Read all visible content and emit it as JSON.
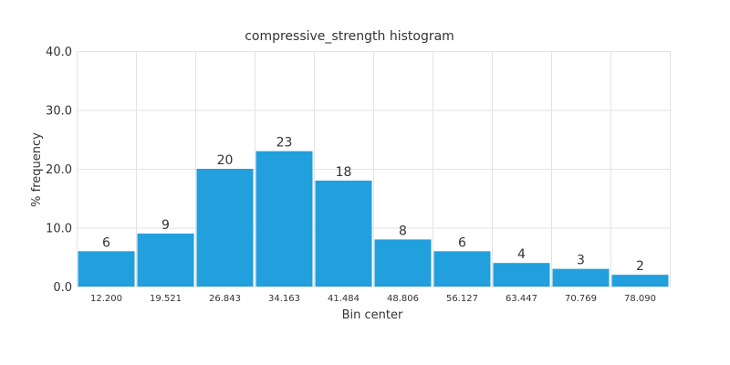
{
  "chart_data": {
    "type": "bar",
    "title": "compressive_strength histogram",
    "xlabel": "Bin center",
    "ylabel": "% frequency",
    "categories": [
      "12.200",
      "19.521",
      "26.843",
      "34.163",
      "41.484",
      "48.806",
      "56.127",
      "63.447",
      "70.769",
      "78.090"
    ],
    "values": [
      6,
      9,
      20,
      23,
      18,
      8,
      6,
      4,
      3,
      2
    ],
    "data_labels": [
      "6",
      "9",
      "20",
      "23",
      "18",
      "8",
      "6",
      "4",
      "3",
      "2"
    ],
    "ylim": [
      0,
      40
    ],
    "yticks": [
      "0.0",
      "10.0",
      "20.0",
      "30.0",
      "40.0"
    ],
    "grid": true,
    "bar_color": "#229fdd"
  }
}
